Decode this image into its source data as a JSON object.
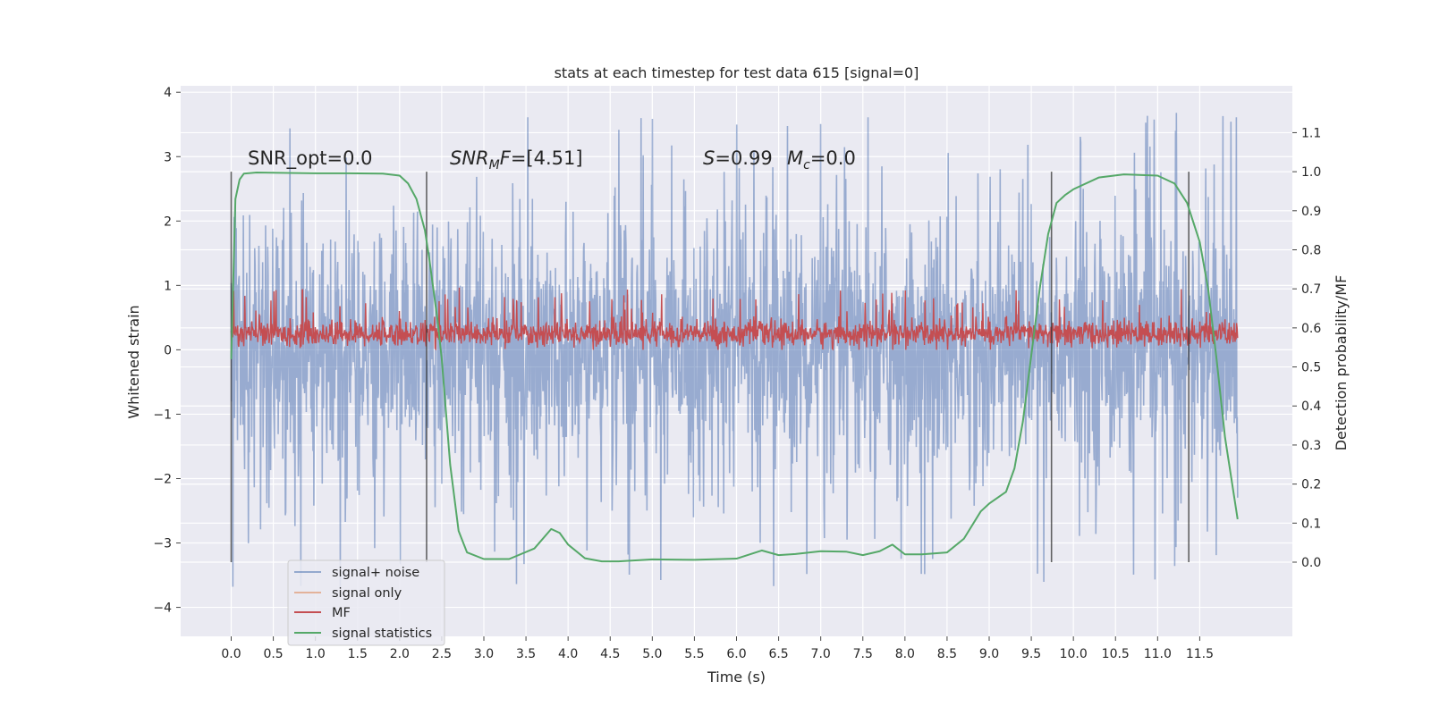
{
  "chart_data": {
    "type": "line",
    "title": "stats at each timestep for test data 615 [signal=0]",
    "xlabel": "Time (s)",
    "ylabel": "Whitened strain",
    "y2label": "Detection probability/MF",
    "xlim": [
      -0.6,
      12.6
    ],
    "ylim": [
      -4.45,
      4.1
    ],
    "y2lim": [
      -0.19,
      1.22
    ],
    "xticks": [
      0.0,
      0.5,
      1.0,
      1.5,
      2.0,
      2.5,
      3.0,
      3.5,
      4.0,
      4.5,
      5.0,
      5.5,
      6.0,
      6.5,
      7.0,
      7.5,
      8.0,
      8.5,
      9.0,
      9.5,
      10.0,
      10.5,
      11.0,
      11.5
    ],
    "xtick_labels": [
      "0.0",
      "0.5",
      "1.0",
      "1.5",
      "2.0",
      "2.5",
      "3.0",
      "3.5",
      "4.0",
      "4.5",
      "5.0",
      "5.5",
      "6.0",
      "6.5",
      "7.0",
      "7.5",
      "8.0",
      "8.5",
      "9.0",
      "9.5",
      "10.0",
      "10.5",
      "11.0",
      "11.5"
    ],
    "yticks": [
      -4,
      -3,
      -2,
      -1,
      0,
      1,
      2,
      3,
      4
    ],
    "ytick_labels": [
      "−4",
      "−3",
      "−2",
      "−1",
      "0",
      "1",
      "2",
      "3",
      "4"
    ],
    "y2ticks": [
      0.0,
      0.1,
      0.2,
      0.3,
      0.4,
      0.5,
      0.6,
      0.7,
      0.8,
      0.9,
      1.0,
      1.1
    ],
    "y2tick_labels": [
      "0.0",
      "0.1",
      "0.2",
      "0.3",
      "0.4",
      "0.5",
      "0.6",
      "0.7",
      "0.8",
      "0.9",
      "1.0",
      "1.1"
    ],
    "grid": true,
    "legend_position": "lower-left",
    "series": [
      {
        "name": "signal+ noise",
        "color": "#4c72b0",
        "x_range": [
          0.0,
          11.95
        ],
        "envelope_abs": 1.7,
        "peak_abs": 3.7
      },
      {
        "name": "signal only",
        "color": "#dd8452"
      },
      {
        "name": "MF",
        "color": "#c44e52",
        "x_range": [
          0.0,
          11.95
        ],
        "baseline": 0.25,
        "band": [
          0.0,
          0.6
        ],
        "peak": 0.97
      },
      {
        "name": "signal statistics",
        "color": "#55a868",
        "axis": "right",
        "x": [
          0.0,
          0.05,
          0.1,
          0.15,
          0.3,
          0.6,
          1.0,
          1.4,
          1.8,
          2.0,
          2.1,
          2.2,
          2.3,
          2.35,
          2.4,
          2.45,
          2.5,
          2.6,
          2.7,
          2.8,
          3.0,
          3.3,
          3.6,
          3.8,
          3.9,
          4.0,
          4.2,
          4.4,
          4.6,
          5.0,
          5.5,
          6.0,
          6.3,
          6.5,
          6.7,
          7.0,
          7.3,
          7.5,
          7.7,
          7.85,
          8.0,
          8.2,
          8.5,
          8.7,
          8.9,
          9.0,
          9.2,
          9.3,
          9.4,
          9.5,
          9.6,
          9.7,
          9.8,
          9.9,
          10.0,
          10.3,
          10.6,
          11.0,
          11.2,
          11.35,
          11.5,
          11.6,
          11.7,
          11.8,
          11.9,
          11.95
        ],
        "y": [
          0.52,
          0.93,
          0.98,
          0.995,
          0.998,
          0.997,
          0.996,
          0.996,
          0.995,
          0.99,
          0.97,
          0.93,
          0.85,
          0.78,
          0.7,
          0.62,
          0.52,
          0.25,
          0.08,
          0.025,
          0.008,
          0.008,
          0.035,
          0.085,
          0.075,
          0.045,
          0.01,
          0.002,
          0.002,
          0.007,
          0.006,
          0.009,
          0.03,
          0.018,
          0.021,
          0.028,
          0.027,
          0.018,
          0.028,
          0.045,
          0.02,
          0.02,
          0.025,
          0.06,
          0.13,
          0.15,
          0.18,
          0.24,
          0.36,
          0.53,
          0.7,
          0.84,
          0.92,
          0.94,
          0.955,
          0.985,
          0.993,
          0.99,
          0.97,
          0.92,
          0.82,
          0.7,
          0.52,
          0.32,
          0.18,
          0.11
        ]
      }
    ],
    "vertical_markers": [
      0.0,
      2.32,
      9.74,
      11.37
    ],
    "annotations": [
      {
        "text": "SNR_opt=0.0"
      },
      {
        "base": "SNR",
        "sub": "M",
        "after": "F=[4.51]"
      },
      {
        "base": "S",
        "after": "=0.99"
      },
      {
        "base": "M",
        "sub": "c",
        "after": "=0.0"
      }
    ]
  }
}
